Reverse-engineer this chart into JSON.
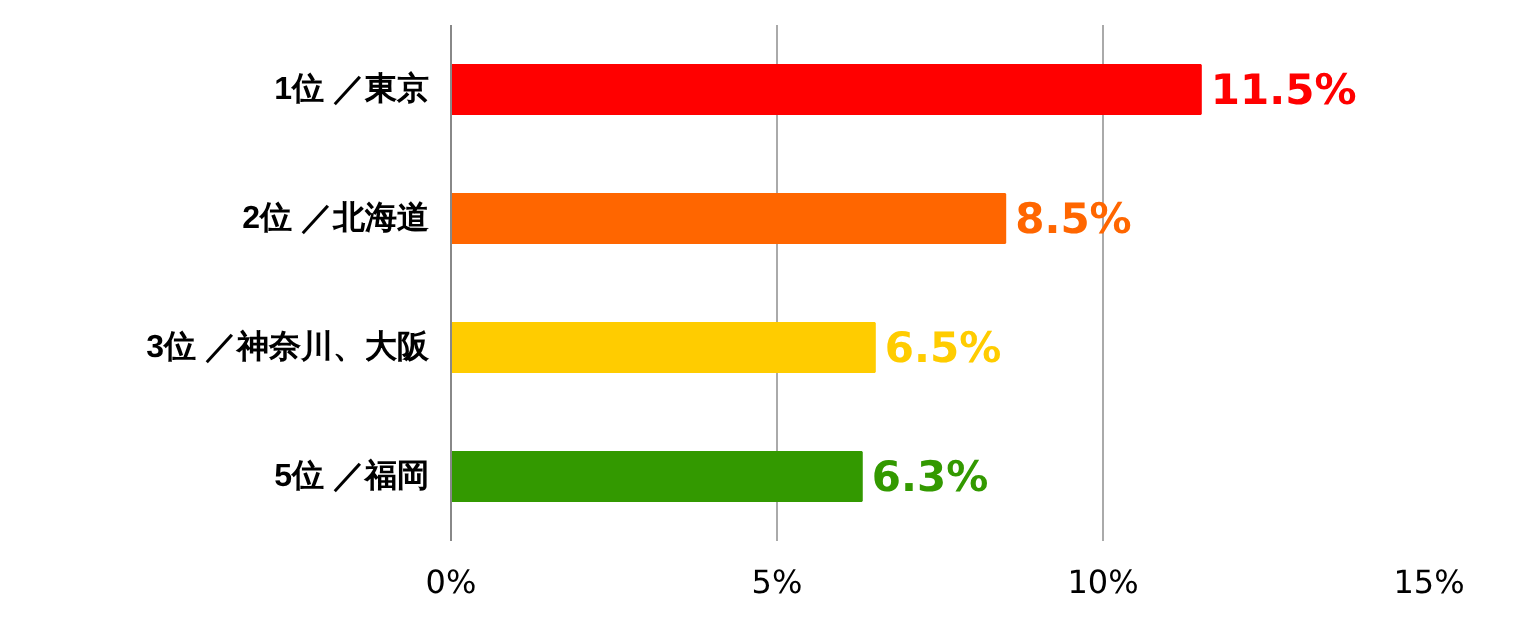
{
  "chart_data": {
    "type": "bar",
    "orientation": "horizontal",
    "categories": [
      "1位 ／東京",
      "2位 ／北海道",
      "3位 ／神奈川、大阪",
      "5位 ／福岡"
    ],
    "values": [
      11.5,
      8.5,
      6.5,
      6.3
    ],
    "colors": [
      "#ff0000",
      "#ff6600",
      "#ffcc00",
      "#339900"
    ],
    "value_labels": [
      "11.5%",
      "8.5%",
      "6.5%",
      "6.3%"
    ],
    "xlim": [
      0,
      15
    ],
    "xticks": [
      {
        "value": 0,
        "label": "0%"
      },
      {
        "value": 5,
        "label": "5%"
      },
      {
        "value": 10,
        "label": "10%"
      },
      {
        "value": 15,
        "label": "15%"
      }
    ],
    "grid": "x"
  }
}
